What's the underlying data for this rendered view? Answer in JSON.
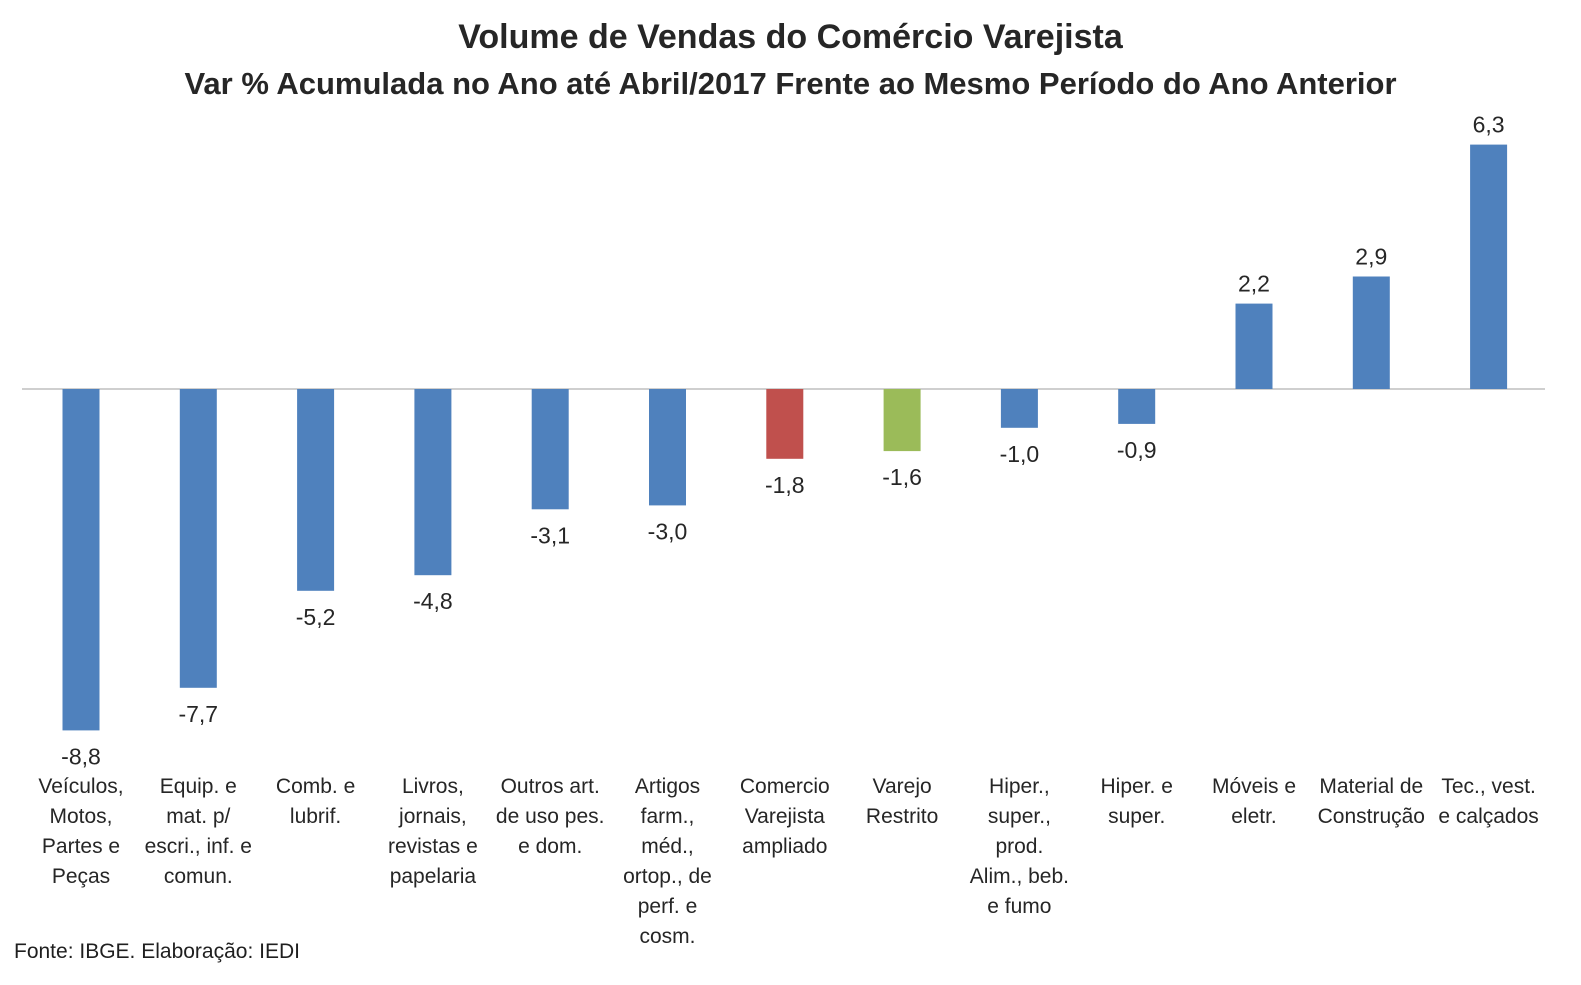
{
  "chart_data": {
    "type": "bar",
    "title": "Volume de Vendas do Comércio Varejista",
    "subtitle": "Var % Acumulada no Ano até Abril/2017 Frente ao Mesmo Período do Ano Anterior",
    "categories": [
      [
        "Veículos,",
        "Motos,",
        "Partes e",
        "Peças"
      ],
      [
        "Equip. e",
        "mat. p/",
        "escri., inf. e",
        "comun."
      ],
      [
        "Comb. e",
        "lubrif."
      ],
      [
        "Livros,",
        "jornais,",
        "revistas e",
        "papelaria"
      ],
      [
        "Outros art.",
        "de uso pes.",
        "e dom."
      ],
      [
        "Artigos",
        "farm.,",
        "méd.,",
        "ortop., de",
        "perf. e",
        "cosm."
      ],
      [
        "Comercio",
        "Varejista",
        "ampliado"
      ],
      [
        "Varejo",
        "Restrito"
      ],
      [
        "Hiper.,",
        "super.,",
        "prod.",
        "Alim., beb.",
        "e fumo"
      ],
      [
        "Hiper. e",
        "super."
      ],
      [
        "Móveis e",
        "eletr."
      ],
      [
        "Material de",
        "Construção"
      ],
      [
        "Tec., vest.",
        "e calçados"
      ]
    ],
    "values": [
      -8.8,
      -7.7,
      -5.2,
      -4.8,
      -3.1,
      -3.0,
      -1.8,
      -1.6,
      -1.0,
      -0.9,
      2.2,
      2.9,
      6.3
    ],
    "data_labels": [
      "-8,8",
      "-7,7",
      "-5,2",
      "-4,8",
      "-3,1",
      "-3,0",
      "-1,8",
      "-1,6",
      "-1,0",
      "-0,9",
      "2,2",
      "2,9",
      "6,3"
    ],
    "bar_colors": [
      "#4f81bd",
      "#4f81bd",
      "#4f81bd",
      "#4f81bd",
      "#4f81bd",
      "#4f81bd",
      "#c0504d",
      "#9bbb59",
      "#4f81bd",
      "#4f81bd",
      "#4f81bd",
      "#4f81bd",
      "#4f81bd"
    ],
    "axis_color": "#bfbfbf",
    "ylim": [
      -8.8,
      6.3
    ],
    "grid": false,
    "legend": "none",
    "source": "Fonte: IBGE. Elaboração: IEDI"
  }
}
